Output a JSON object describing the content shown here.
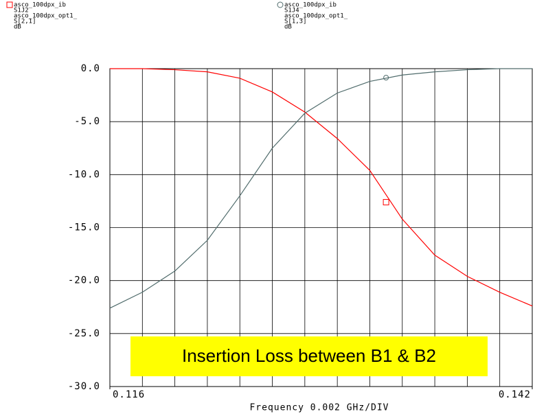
{
  "chart_data": {
    "type": "line",
    "legends": [
      {
        "lines": [
          "asco_100dpx_ib",
          "S1J2",
          "asco_100dpx_opt1_",
          "S[2,1]",
          "dB"
        ]
      },
      {
        "lines": [
          "asco_100dpx_ib",
          "S1J4",
          "asco_100dpx_opt1_",
          "S[1,3]",
          "dB"
        ]
      }
    ],
    "x_label": "Frequency 0.002 GHz/DIV",
    "annotation": "Insertion Loss between B1 & B2",
    "x": [
      0.116,
      0.118,
      0.12,
      0.122,
      0.124,
      0.126,
      0.128,
      0.13,
      0.132,
      0.134,
      0.136,
      0.138,
      0.14,
      0.142
    ],
    "series": [
      {
        "color": "#ff0000",
        "marker": "square",
        "values": [
          0,
          0,
          -0.1,
          -0.3,
          -0.9,
          -2.2,
          -4.1,
          -6.6,
          -9.6,
          -14.2,
          -17.6,
          -19.6,
          -21.1,
          -22.4
        ],
        "marker_x": 0.133,
        "marker_y": -12.6
      },
      {
        "color": "#4f6b6b",
        "marker": "circle",
        "values": [
          -22.6,
          -21.1,
          -19.1,
          -16.2,
          -12.0,
          -7.5,
          -4.2,
          -2.3,
          -1.2,
          -0.6,
          -0.3,
          -0.1,
          0,
          0
        ],
        "marker_x": 0.133,
        "marker_y": -0.85
      }
    ],
    "xlim": [
      0.116,
      0.142
    ],
    "xticks": [
      {
        "value": 0.116,
        "label": "0.116"
      },
      {
        "value": 0.142,
        "label": "0.142"
      }
    ],
    "xgrid": [
      0.116,
      0.118,
      0.12,
      0.122,
      0.124,
      0.126,
      0.128,
      0.13,
      0.132,
      0.134,
      0.136,
      0.138,
      0.14,
      0.142
    ],
    "ylim": [
      -30,
      0
    ],
    "yticks": [
      {
        "value": 0,
        "label": "0.0"
      },
      {
        "value": -5,
        "label": "-5.0"
      },
      {
        "value": -10,
        "label": "-10.0"
      },
      {
        "value": -15,
        "label": "-15.0"
      },
      {
        "value": -20,
        "label": "-20.0"
      },
      {
        "value": -25,
        "label": "-25.0"
      },
      {
        "value": -30,
        "label": "-30.0"
      }
    ],
    "grid": true
  }
}
